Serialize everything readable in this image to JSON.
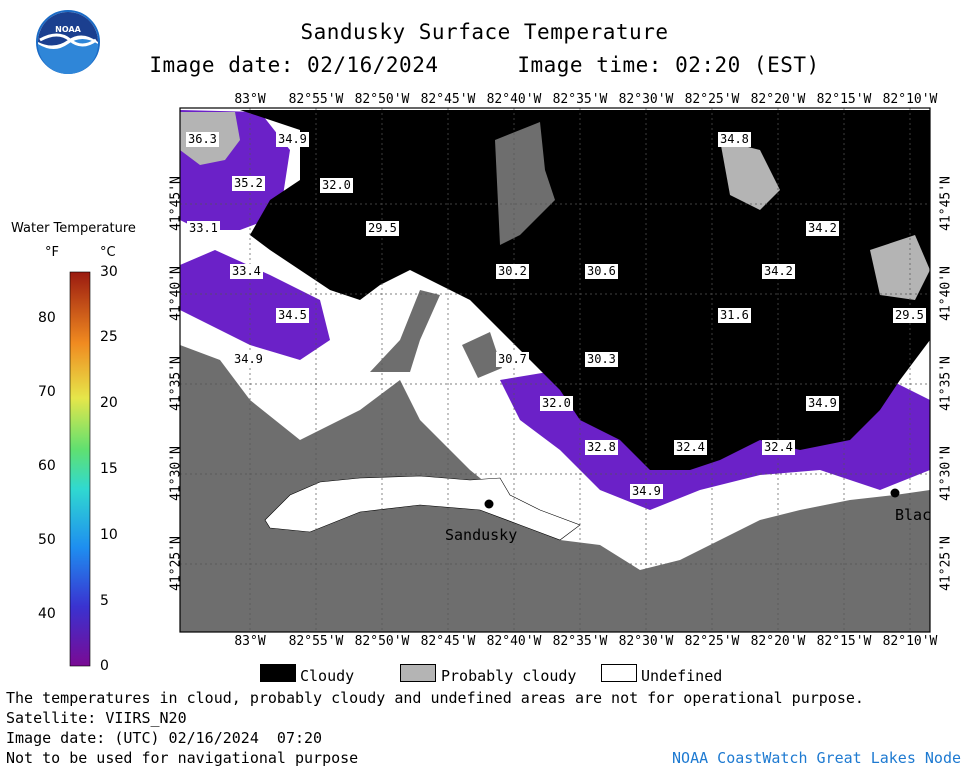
{
  "header": {
    "title": "Sandusky Surface Temperature",
    "date_line": "Image date: 02/16/2024      Image time: 02:20 (EST)"
  },
  "logo": {
    "text": "NOAA",
    "icon": "noaa-logo-icon"
  },
  "colorbar": {
    "title": "Water Temperature",
    "unit_f": "°F",
    "unit_c": "°C",
    "f_ticks": [
      "80",
      "70",
      "60",
      "50",
      "40"
    ],
    "c_ticks": [
      "30",
      "25",
      "20",
      "15",
      "10",
      "5",
      "0"
    ]
  },
  "map": {
    "lon_labels": [
      "83°W",
      "82°55'W",
      "82°50'W",
      "82°45'W",
      "82°40'W",
      "82°35'W",
      "82°30'W",
      "82°25'W",
      "82°20'W",
      "82°15'W",
      "82°10'W"
    ],
    "lat_labels": [
      "41°45'N",
      "41°40'N",
      "41°35'N",
      "41°30'N",
      "41°25'N"
    ],
    "places": [
      {
        "name": "Sandusky"
      },
      {
        "name": "Blac"
      }
    ],
    "temps": [
      "36.3",
      "34.9",
      "35.2",
      "32.0",
      "33.1",
      "29.5",
      "33.4",
      "30.2",
      "30.6",
      "34.2",
      "34.5",
      "31.6",
      "29.5",
      "34.9",
      "30.7",
      "30.3",
      "34.8",
      "32.0",
      "32.8",
      "32.4",
      "32.4",
      "34.9",
      "34.9",
      "34.2"
    ],
    "colors": {
      "land": "#6e6e6e",
      "cloud": "#000000",
      "purple": "#6b21c8",
      "undefined": "#ffffff",
      "probably": "#b4b4b4"
    }
  },
  "legend": {
    "items": [
      {
        "label": "Cloudy",
        "color": "#000000"
      },
      {
        "label": "Probably cloudy",
        "color": "#b4b4b4"
      },
      {
        "label": "Undefined",
        "color": "#ffffff"
      }
    ]
  },
  "footer": {
    "disclaimer": "The temperatures in cloud, probably cloudy and undefined areas are not for operational purpose.",
    "satellite": "Satellite: VIIRS_N20",
    "utc_date": "Image date: (UTC) 02/16/2024  07:20",
    "nav_warning": "Not to be used for navigational purpose",
    "node": "NOAA CoastWatch Great Lakes Node"
  }
}
